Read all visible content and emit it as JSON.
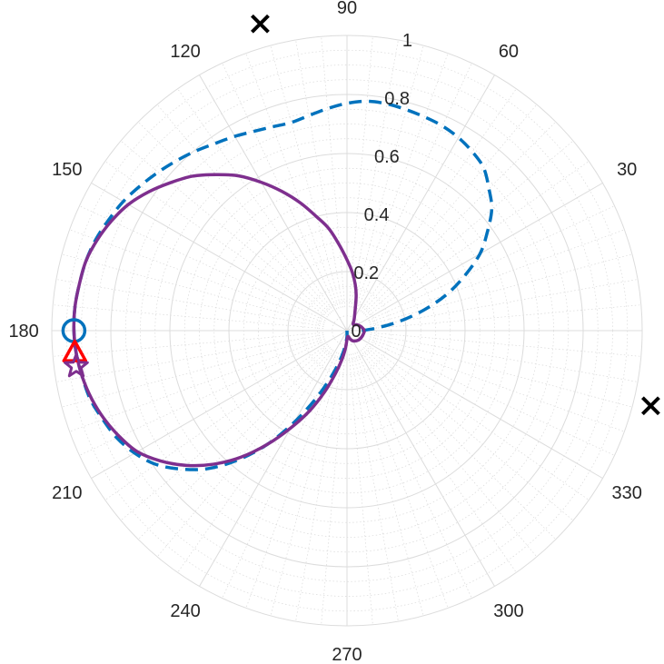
{
  "chart_data": {
    "type": "polar-line",
    "title": "",
    "theta_unit": "degrees",
    "r_range": [
      0,
      1
    ],
    "r_ticks": [
      0,
      0.2,
      0.4,
      0.6,
      0.8,
      1
    ],
    "r_tick_labels": [
      "0",
      "0.2",
      "0.4",
      "0.6",
      "0.8",
      "1"
    ],
    "theta_ticks": [
      0,
      30,
      60,
      90,
      120,
      150,
      180,
      210,
      240,
      270,
      300,
      330
    ],
    "theta_tick_labels": [
      "0",
      "30",
      "60",
      "90",
      "120",
      "150",
      "180",
      "210",
      "240",
      "270",
      "300",
      "330"
    ],
    "grid": true,
    "minor_grid": true,
    "legend": "none",
    "series": [
      {
        "color": "#0072BD",
        "line_style": "dashed",
        "theta_deg": [
          0,
          5,
          10,
          15,
          20,
          25,
          30,
          35,
          40,
          45,
          50,
          55,
          60,
          65,
          70,
          75,
          80,
          85,
          90,
          95,
          100,
          105,
          110,
          115,
          120,
          125,
          130,
          135,
          140,
          145,
          150,
          155,
          160,
          165,
          170,
          175,
          180,
          185,
          190,
          195,
          200,
          205,
          210,
          215,
          220,
          225,
          230,
          235,
          240,
          245,
          250,
          255,
          260,
          265,
          270,
          275
        ],
        "r": [
          0.05,
          0.1,
          0.18,
          0.27,
          0.36,
          0.44,
          0.52,
          0.58,
          0.64,
          0.68,
          0.72,
          0.74,
          0.755,
          0.765,
          0.77,
          0.775,
          0.78,
          0.78,
          0.77,
          0.755,
          0.74,
          0.73,
          0.735,
          0.745,
          0.76,
          0.775,
          0.795,
          0.815,
          0.835,
          0.855,
          0.875,
          0.89,
          0.905,
          0.915,
          0.92,
          0.925,
          0.925,
          0.92,
          0.91,
          0.9,
          0.88,
          0.86,
          0.83,
          0.79,
          0.73,
          0.66,
          0.57,
          0.47,
          0.36,
          0.26,
          0.18,
          0.12,
          0.075,
          0.04,
          0.02,
          0.0
        ]
      },
      {
        "color": "#7E2F8E",
        "line_style": "solid",
        "theta_deg": [
          0,
          15,
          30,
          45,
          60,
          75,
          80,
          85,
          90,
          95,
          100,
          105,
          110,
          115,
          120,
          125,
          130,
          135,
          140,
          145,
          150,
          155,
          160,
          165,
          170,
          175,
          180,
          185,
          190,
          195,
          200,
          205,
          210,
          215,
          220,
          225,
          230,
          235,
          240,
          245,
          250,
          255,
          260,
          265,
          270,
          280,
          290,
          300,
          320,
          340,
          360
        ],
        "r": [
          0.06,
          0.05,
          0.04,
          0.03,
          0.05,
          0.12,
          0.16,
          0.2,
          0.24,
          0.29,
          0.35,
          0.4,
          0.46,
          0.52,
          0.58,
          0.64,
          0.69,
          0.74,
          0.78,
          0.82,
          0.855,
          0.88,
          0.9,
          0.915,
          0.92,
          0.925,
          0.925,
          0.92,
          0.91,
          0.895,
          0.875,
          0.85,
          0.82,
          0.77,
          0.71,
          0.64,
          0.56,
          0.47,
          0.38,
          0.3,
          0.22,
          0.15,
          0.1,
          0.06,
          0.03,
          0.02,
          0.03,
          0.04,
          0.05,
          0.055,
          0.06
        ]
      }
    ],
    "markers": [
      {
        "shape": "x-cross",
        "color": "#000000",
        "theta_deg": 105.8,
        "r": 1.08
      },
      {
        "shape": "x-cross",
        "color": "#000000",
        "theta_deg": 346.1,
        "r": 1.06
      },
      {
        "shape": "circle",
        "color": "#0072BD",
        "theta_deg": 180,
        "r": 0.925
      },
      {
        "shape": "triangle",
        "color": "#FF0000",
        "theta_deg": 184.5,
        "r": 0.925
      },
      {
        "shape": "star",
        "color": "#7E2F8E",
        "theta_deg": 187.5,
        "r": 0.925
      }
    ]
  }
}
